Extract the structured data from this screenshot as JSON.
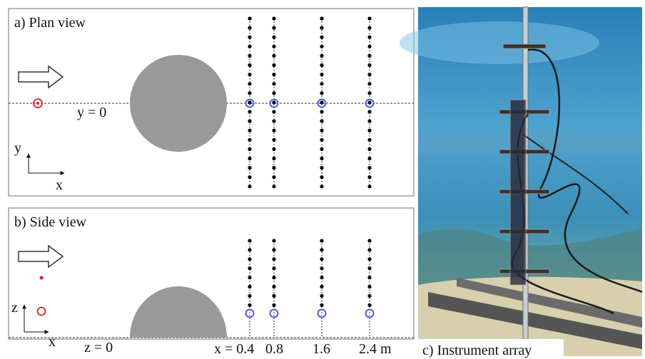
{
  "panel_a": {
    "title": "a) Plan view",
    "line_label": "y = 0",
    "axis_y": "y",
    "axis_x": "x"
  },
  "panel_b": {
    "title": "b) Side view",
    "line_label": "z = 0",
    "axis_z": "z",
    "axis_x": "x",
    "x_positions": [
      "x = 0.4",
      "0.8",
      "1.6",
      "2.4 m"
    ]
  },
  "panel_c": {
    "caption": "c) Instrument array"
  }
}
